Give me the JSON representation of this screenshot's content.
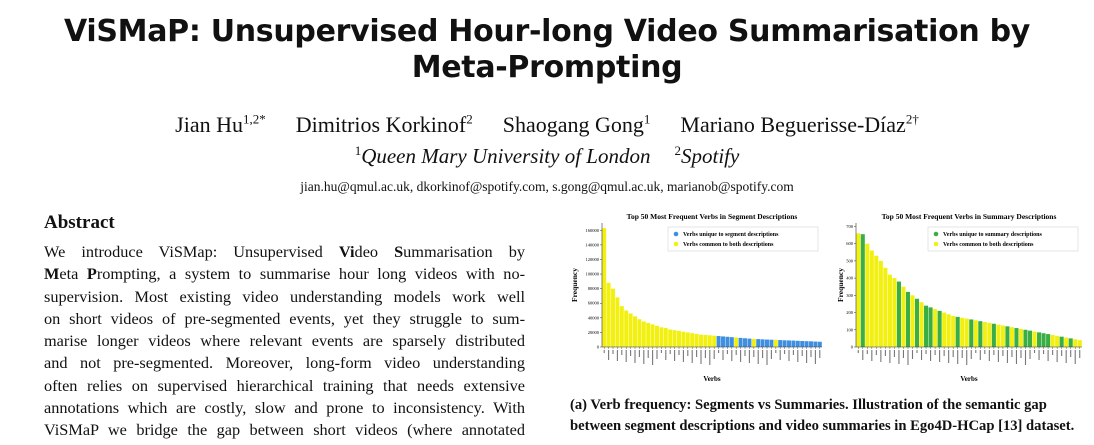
{
  "header": {
    "title": "ViSMaP: Unsupervised Hour-long Video Summarisation by Meta-Prompting",
    "authors": [
      {
        "name": "Jian Hu",
        "sup": "1,2*"
      },
      {
        "name": "Dimitrios Korkinof",
        "sup": "2"
      },
      {
        "name": "Shaogang Gong",
        "sup": "1"
      },
      {
        "name": "Mariano Beguerisse-Díaz",
        "sup": "2†"
      }
    ],
    "affiliations": [
      {
        "sup": "1",
        "name": "Queen Mary University of London"
      },
      {
        "sup": "2",
        "name": "Spotify"
      }
    ],
    "emails": "jian.hu@qmul.ac.uk, dkorkinof@spotify.com, s.gong@qmul.ac.uk, marianob@spotify.com"
  },
  "abstract": {
    "heading": "Abstract",
    "lines": [
      [
        "We introduce ViSMap: Unsupervised ",
        {
          "b": "Vi"
        },
        "deo ",
        {
          "b": "S"
        },
        "ummarisation by"
      ],
      [
        {
          "b": "M"
        },
        "eta ",
        {
          "b": "P"
        },
        "rompting, a system to summarise hour long videos with no-"
      ],
      [
        "supervision. Most existing video understanding models work well"
      ],
      [
        "on short videos of pre-segmented events, yet they struggle to sum-"
      ],
      [
        "marise longer videos where relevant events are sparsely distributed"
      ],
      [
        "and not pre-segmented. Moreover, long-form video understanding"
      ],
      [
        "often relies on supervised hierarchical training that needs extensive"
      ],
      [
        "annotations which are costly, slow and prone to inconsistency. With"
      ],
      [
        "ViSMaP we bridge the gap between short videos (where annotated"
      ]
    ]
  },
  "caption": "(a) Verb frequency: Segments vs Summaries. Illustration of the semantic gap between segment descriptions and video summaries in Ego4D-HCap [13] dataset.",
  "chart_data": [
    {
      "type": "bar",
      "title": "Top 50 Most Frequent Verbs in Segment Descriptions",
      "x_label": "Verbs",
      "y_label": "Frequency",
      "legend": "upper right",
      "ylim": [
        0,
        170000
      ],
      "yticks": [
        0,
        20000,
        40000,
        60000,
        80000,
        100000,
        120000,
        140000,
        160000
      ],
      "series": [
        {
          "name": "Verbs unique to segment descriptions",
          "color": "#3f8fe0",
          "values": [
            null,
            null,
            null,
            null,
            null,
            null,
            null,
            null,
            null,
            null,
            null,
            null,
            null,
            null,
            null,
            null,
            null,
            null,
            null,
            null,
            null,
            null,
            null,
            null,
            null,
            null,
            15000,
            14500,
            14000,
            13500,
            null,
            12500,
            12000,
            11500,
            null,
            10800,
            10500,
            10200,
            10000,
            null,
            9500,
            9200,
            9000,
            8800,
            8500,
            8200,
            8000,
            7800,
            7500,
            7200
          ]
        },
        {
          "name": "Verbs common to both descriptions",
          "color": "#f2f011",
          "values": [
            163000,
            88000,
            80000,
            68000,
            56000,
            50000,
            46000,
            42000,
            38000,
            35000,
            33000,
            31000,
            29000,
            27000,
            26000,
            24000,
            23000,
            22000,
            21000,
            20000,
            19000,
            18000,
            17000,
            16500,
            16000,
            15500,
            null,
            null,
            null,
            null,
            13000,
            null,
            null,
            null,
            11000,
            null,
            null,
            null,
            null,
            9800,
            null,
            null,
            null,
            null,
            null,
            null,
            null,
            null,
            null,
            null
          ]
        }
      ]
    },
    {
      "type": "bar",
      "title": "Top 50 Most Frequent Verbs in Summary Descriptions",
      "x_label": "Verbs",
      "y_label": "Frequency",
      "legend": "upper right",
      "ylim": [
        0,
        720
      ],
      "yticks": [
        0,
        100,
        200,
        300,
        400,
        500,
        600,
        700
      ],
      "series": [
        {
          "name": "Verbs unique to summary descriptions",
          "color": "#3aae45",
          "values": [
            null,
            655,
            null,
            null,
            null,
            null,
            null,
            null,
            null,
            380,
            null,
            320,
            null,
            280,
            null,
            240,
            230,
            null,
            210,
            null,
            null,
            null,
            175,
            null,
            null,
            160,
            null,
            150,
            null,
            null,
            135,
            null,
            null,
            120,
            null,
            110,
            null,
            100,
            95,
            null,
            85,
            80,
            75,
            null,
            null,
            60,
            null,
            50,
            null,
            null
          ]
        },
        {
          "name": "Verbs common to both descriptions",
          "color": "#f2f011",
          "values": [
            660,
            null,
            600,
            560,
            530,
            500,
            460,
            420,
            400,
            null,
            350,
            null,
            300,
            null,
            260,
            null,
            null,
            220,
            null,
            200,
            190,
            180,
            null,
            170,
            165,
            null,
            155,
            null,
            145,
            140,
            null,
            130,
            125,
            null,
            115,
            null,
            105,
            null,
            null,
            90,
            null,
            null,
            null,
            70,
            65,
            null,
            55,
            null,
            45,
            40
          ]
        }
      ]
    }
  ]
}
